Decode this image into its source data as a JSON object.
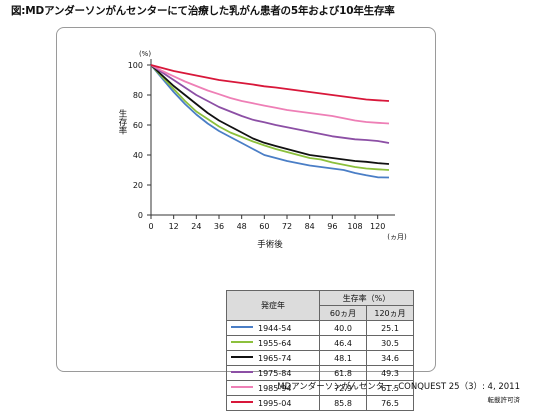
{
  "title": "図:MDアンダーソンがんセンターにて治療した乳がん患者の5年および10年生存率",
  "colors": {
    "1944-54": "#4a7ec6",
    "1955-64": "#8cc03c",
    "1965-74": "#111111",
    "1975-84": "#8c4fa5",
    "1985-94": "#ee7fb6",
    "1995-04": "#d8173a"
  },
  "chart_data": {
    "type": "line",
    "title": "",
    "xlabel": "手術後",
    "x_unit": "(ヵ月)",
    "ylabel": "生存率",
    "y_unit": "(%)",
    "xlim": [
      0,
      126
    ],
    "ylim": [
      0,
      100
    ],
    "x_ticks": [
      "0",
      "12",
      "24",
      "36",
      "48",
      "60",
      "72",
      "84",
      "96",
      "108",
      "120"
    ],
    "y_ticks": [
      "0",
      "20",
      "40",
      "60",
      "80",
      "100"
    ],
    "grid": false,
    "x": [
      0,
      6,
      12,
      18,
      24,
      30,
      36,
      42,
      48,
      54,
      60,
      66,
      72,
      78,
      84,
      90,
      96,
      102,
      108,
      114,
      120,
      126
    ],
    "series": [
      {
        "name": "1944-54",
        "values": [
          100,
          91,
          82,
          74,
          67,
          61,
          56,
          52,
          48,
          44,
          40,
          38,
          36,
          34.5,
          33,
          32,
          31,
          30,
          28,
          26.5,
          25.1,
          25
        ]
      },
      {
        "name": "1955-64",
        "values": [
          100,
          92,
          84,
          76,
          69,
          64,
          59,
          55,
          52,
          49,
          46.4,
          44,
          42,
          40,
          38,
          37,
          35,
          33.5,
          32,
          31,
          30.5,
          30
        ]
      },
      {
        "name": "1965-74",
        "values": [
          100,
          93,
          86,
          80,
          74,
          68,
          63,
          59,
          55,
          51,
          48.1,
          46,
          44,
          42,
          40,
          39,
          38,
          37,
          36,
          35.5,
          34.6,
          34
        ]
      },
      {
        "name": "1975-84",
        "values": [
          100,
          95,
          90,
          85,
          80,
          76,
          72,
          69,
          66,
          63.5,
          61.8,
          60,
          58.5,
          57,
          55.5,
          54,
          52.5,
          51.5,
          50.5,
          50,
          49.3,
          48
        ]
      },
      {
        "name": "1985-94",
        "values": [
          100,
          96,
          92.5,
          89,
          86,
          83,
          80.5,
          78,
          76,
          74.5,
          72.9,
          71.5,
          70,
          69,
          68,
          67,
          66,
          64.5,
          63,
          62,
          61.5,
          61
        ]
      },
      {
        "name": "1995-04",
        "values": [
          100,
          98,
          96,
          94.5,
          93,
          91.5,
          90,
          89,
          88,
          87,
          85.8,
          85,
          84,
          83,
          82,
          81,
          80,
          79,
          78,
          77,
          76.5,
          76
        ]
      }
    ]
  },
  "table": {
    "header_year": "発症年",
    "header_rate": "生存率（%）",
    "sub_60": "60ヵ月",
    "sub_120": "120ヵ月",
    "rows": [
      {
        "year": "1944-54",
        "m60": "40.0",
        "m120": "25.1"
      },
      {
        "year": "1955-64",
        "m60": "46.4",
        "m120": "30.5"
      },
      {
        "year": "1965-74",
        "m60": "48.1",
        "m120": "34.6"
      },
      {
        "year": "1975-84",
        "m60": "61.8",
        "m120": "49.3"
      },
      {
        "year": "1985-94",
        "m60": "72.9",
        "m120": "61.5"
      },
      {
        "year": "1995-04",
        "m60": "85.8",
        "m120": "76.5"
      }
    ]
  },
  "citation": "MDアンダーソンがんセンター. CONQUEST 25（3）: 4, 2011",
  "permission": "転載許可済"
}
